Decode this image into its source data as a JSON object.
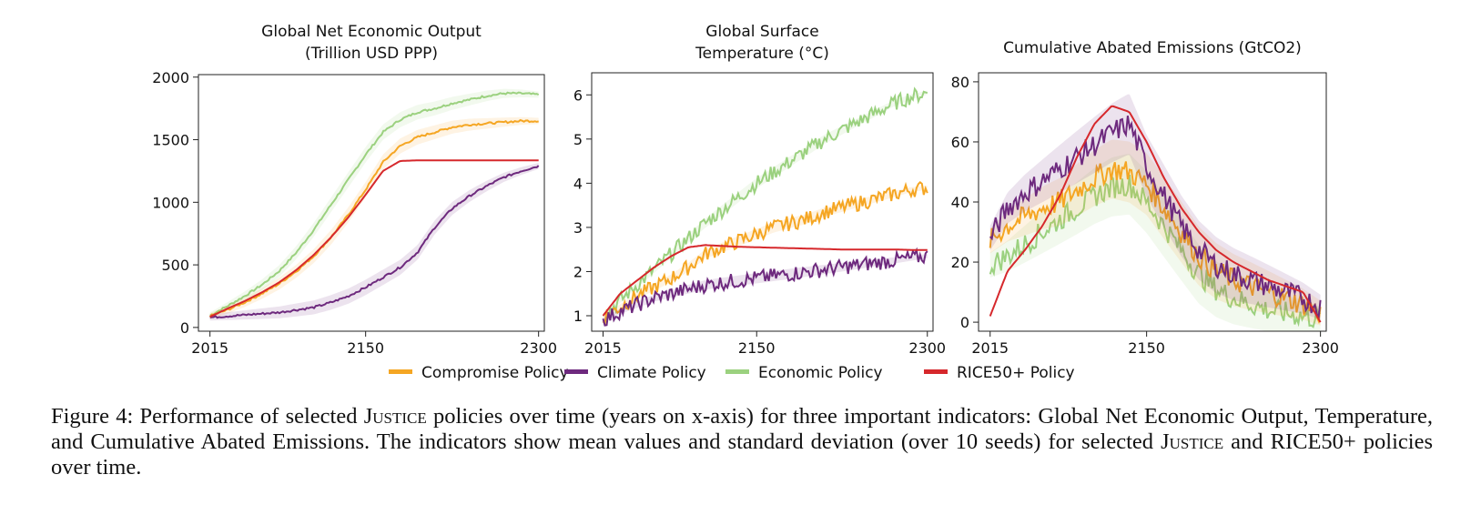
{
  "legend": [
    {
      "name": "Compromise Policy",
      "color": "#f5a623"
    },
    {
      "name": "Climate Policy",
      "color": "#6e2a7e"
    },
    {
      "name": "Economic Policy",
      "color": "#9bd17f"
    },
    {
      "name": "RICE50+ Policy",
      "color": "#d6282c"
    }
  ],
  "caption": {
    "label": "Figure 4:",
    "t1": "Performance of selected ",
    "justice": "Justice",
    "t2": " policies over time (years on x-axis) for three important indicators: Global Net Economic Output, Temperature, and Cumulative Abated Emissions.  The indicators show mean values and standard deviation (over 10 seeds) for selected ",
    "justice2": "Justice",
    "t3": " and RICE50+ policies over time."
  },
  "chart_data": [
    {
      "type": "line",
      "title_lines": [
        "Global Net Economic Output",
        "(Trillion USD PPP)"
      ],
      "xlabel": "",
      "ylabel": "",
      "xlim": [
        2005,
        2305
      ],
      "ylim": [
        -30,
        2020
      ],
      "xticks": [
        "2015",
        "2150",
        "2300"
      ],
      "yticks": [
        "0",
        "500",
        "1000",
        "1500",
        "2000"
      ],
      "x": [
        2015,
        2030,
        2045,
        2060,
        2075,
        2090,
        2105,
        2120,
        2135,
        2150,
        2165,
        2180,
        2195,
        2210,
        2225,
        2240,
        2255,
        2270,
        2285,
        2300
      ],
      "series": [
        {
          "name": "Compromise Policy",
          "values": [
            90,
            140,
            200,
            270,
            350,
            450,
            570,
            720,
            900,
            1100,
            1320,
            1450,
            1520,
            1560,
            1600,
            1620,
            1630,
            1640,
            1650,
            1650
          ]
        },
        {
          "name": "Climate Policy",
          "values": [
            80,
            90,
            100,
            110,
            120,
            140,
            160,
            200,
            250,
            320,
            400,
            480,
            600,
            800,
            950,
            1050,
            1130,
            1200,
            1250,
            1290
          ]
        },
        {
          "name": "Economic Policy",
          "values": [
            95,
            170,
            250,
            340,
            450,
            600,
            780,
            980,
            1180,
            1380,
            1560,
            1660,
            1720,
            1750,
            1790,
            1820,
            1850,
            1870,
            1870,
            1860
          ]
        },
        {
          "name": "RICE50+ Policy",
          "values": [
            85,
            150,
            210,
            280,
            360,
            460,
            580,
            720,
            880,
            1060,
            1250,
            1330,
            1335,
            1335,
            1335,
            1335,
            1335,
            1335,
            1335,
            1335
          ]
        }
      ]
    },
    {
      "type": "line",
      "title_lines": [
        "Global Surface",
        "Temperature (°C)"
      ],
      "xlabel": "",
      "ylabel": "",
      "xlim": [
        2005,
        2305
      ],
      "ylim": [
        0.65,
        6.5
      ],
      "xticks": [
        "2015",
        "2150",
        "2300"
      ],
      "yticks": [
        "1",
        "2",
        "3",
        "4",
        "5",
        "6"
      ],
      "x": [
        2015,
        2030,
        2045,
        2060,
        2075,
        2090,
        2105,
        2120,
        2135,
        2150,
        2165,
        2180,
        2195,
        2210,
        2225,
        2240,
        2255,
        2270,
        2285,
        2300
      ],
      "series": [
        {
          "name": "Compromise Policy",
          "values": [
            0.95,
            1.2,
            1.45,
            1.65,
            1.85,
            2.1,
            2.4,
            2.55,
            2.7,
            2.85,
            3.0,
            3.1,
            3.2,
            3.35,
            3.45,
            3.55,
            3.65,
            3.75,
            3.85,
            3.9
          ]
        },
        {
          "name": "Climate Policy",
          "values": [
            0.9,
            1.1,
            1.25,
            1.4,
            1.5,
            1.6,
            1.7,
            1.75,
            1.8,
            1.85,
            1.9,
            1.95,
            2.0,
            2.05,
            2.1,
            2.15,
            2.2,
            2.25,
            2.3,
            2.35
          ]
        },
        {
          "name": "Economic Policy",
          "values": [
            1.0,
            1.35,
            1.7,
            2.05,
            2.4,
            2.75,
            3.1,
            3.4,
            3.7,
            4.0,
            4.25,
            4.5,
            4.75,
            5.0,
            5.2,
            5.4,
            5.6,
            5.8,
            5.95,
            6.05
          ]
        },
        {
          "name": "RICE50+ Policy",
          "values": [
            1.0,
            1.5,
            1.8,
            2.1,
            2.35,
            2.55,
            2.6,
            2.58,
            2.56,
            2.55,
            2.54,
            2.53,
            2.52,
            2.51,
            2.5,
            2.5,
            2.5,
            2.5,
            2.49,
            2.49
          ]
        }
      ]
    },
    {
      "type": "line",
      "title_lines": [
        "Cumulative Abated Emissions (GtCO2)"
      ],
      "xlabel": "",
      "ylabel": "",
      "xlim": [
        2005,
        2305
      ],
      "ylim": [
        -3,
        83
      ],
      "xticks": [
        "2015",
        "2150",
        "2300"
      ],
      "yticks": [
        "0",
        "20",
        "40",
        "60",
        "80"
      ],
      "x": [
        2015,
        2030,
        2045,
        2060,
        2075,
        2090,
        2105,
        2120,
        2135,
        2150,
        2165,
        2180,
        2195,
        2210,
        2225,
        2240,
        2255,
        2270,
        2285,
        2300
      ],
      "series": [
        {
          "name": "Compromise Policy",
          "values": [
            27,
            32,
            35,
            38,
            40,
            44,
            48,
            51,
            50,
            46,
            38,
            30,
            22,
            17,
            14,
            12,
            10,
            8,
            6,
            3
          ]
        },
        {
          "name": "Climate Policy",
          "values": [
            28,
            38,
            43,
            47,
            51,
            55,
            59,
            63,
            66,
            52,
            42,
            32,
            24,
            19,
            16,
            14,
            12,
            10,
            8,
            5
          ]
        },
        {
          "name": "Economic Policy",
          "values": [
            19,
            22,
            26,
            30,
            34,
            38,
            42,
            45,
            46,
            40,
            32,
            24,
            16,
            11,
            8,
            6,
            4,
            3,
            2,
            1
          ]
        },
        {
          "name": "RICE50+ Policy",
          "values": [
            2,
            17,
            24,
            32,
            42,
            55,
            66,
            72,
            70,
            60,
            48,
            38,
            30,
            24,
            20,
            17,
            14,
            12,
            10,
            0
          ]
        }
      ]
    }
  ]
}
